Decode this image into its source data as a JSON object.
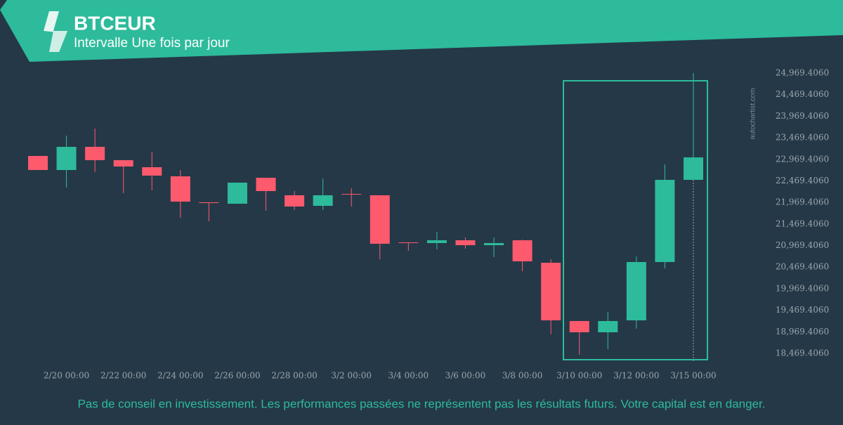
{
  "header": {
    "title": "BTCEUR",
    "subtitle": "Intervalle Une fois par jour"
  },
  "watermark": "autochartist.com",
  "footer": "Pas de conseil en investissement. Les performances passées ne représentent pas les résultats futurs. Votre capital est en danger.",
  "chart_data": {
    "type": "candlestick",
    "up_color": "#2dbb9b",
    "down_color": "#fd5a6e",
    "categories": [
      null,
      "2/20 00:00",
      null,
      "2/22 00:00",
      null,
      "2/24 00:00",
      null,
      "2/26 00:00",
      null,
      "2/28 00:00",
      null,
      "3/2 00:00",
      null,
      "3/4 00:00",
      null,
      "3/6 00:00",
      null,
      "3/8 00:00",
      null,
      "3/10 00:00",
      null,
      "3/12 00:00",
      null,
      "3/15 00:00"
    ],
    "open": [
      23047,
      22721,
      23258,
      22949,
      22786,
      22575,
      21972,
      21939,
      22542,
      22135,
      21890,
      22167,
      22135,
      21043,
      21027,
      21092,
      20978,
      21092,
      20571,
      19219,
      18958,
      19235,
      20587,
      22493
    ],
    "high": [
      23047,
      23519,
      23682,
      22949,
      23145,
      22721,
      21972,
      22428,
      22526,
      22233,
      22526,
      22298,
      22135,
      21043,
      21288,
      21157,
      21157,
      21108,
      20652,
      19219,
      19430,
      20717,
      22851,
      24969
    ],
    "low": [
      22721,
      22314,
      22672,
      22184,
      22249,
      21613,
      21532,
      21939,
      21776,
      21793,
      21793,
      21874,
      20652,
      20848,
      20880,
      20897,
      20701,
      20375,
      18909,
      18437,
      18567,
      19039,
      20440,
      22493
    ],
    "close": [
      22721,
      23258,
      22949,
      22802,
      22591,
      21988,
      21955,
      22428,
      22233,
      21874,
      22135,
      22151,
      21011,
      21027,
      21092,
      20978,
      21027,
      20603,
      19235,
      18958,
      19219,
      20587,
      22493,
      23014
    ],
    "ylim": [
      18469.406,
      24969.406
    ],
    "yticks": [
      {
        "value": 18469.406,
        "label": "18,469.4060"
      },
      {
        "value": 18969.406,
        "label": "18,969.4060"
      },
      {
        "value": 19469.406,
        "label": "19,469.4060"
      },
      {
        "value": 19969.406,
        "label": "19,969.4060"
      },
      {
        "value": 20469.406,
        "label": "20,469.4060"
      },
      {
        "value": 20969.406,
        "label": "20,969.4060"
      },
      {
        "value": 21469.406,
        "label": "21,469.4060"
      },
      {
        "value": 21969.406,
        "label": "21,969.4060"
      },
      {
        "value": 22469.406,
        "label": "22,469.4060"
      },
      {
        "value": 22969.406,
        "label": "22,969.4060"
      },
      {
        "value": 23469.406,
        "label": "23,469.4060"
      },
      {
        "value": 23969.406,
        "label": "23,969.4060"
      },
      {
        "value": 24469.406,
        "label": "24,469.4060"
      },
      {
        "value": 24969.406,
        "label": "24,969.4060"
      }
    ]
  }
}
